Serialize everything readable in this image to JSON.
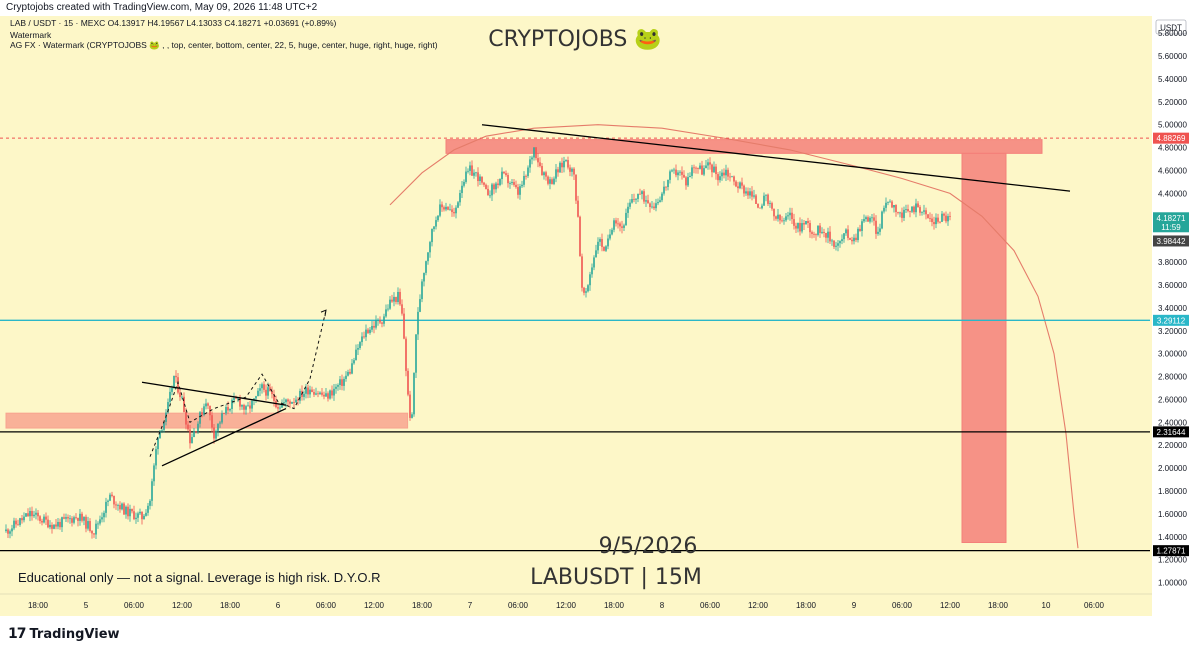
{
  "header": {
    "created_by": "Cryptojobs created with TradingView.com, May 09, 2026 11:48 UTC+2"
  },
  "brand": {
    "logo_mark": "17",
    "logo_text": "TradingView"
  },
  "colors": {
    "background": "#fdf7c8",
    "up": "#26a69a",
    "down": "#ef5350",
    "wick": "#444444",
    "zone": "#f8a48f",
    "red_zone": "#f4807a",
    "cyan": "#2ab7c8",
    "black": "#000000",
    "curve": "#e57c6a"
  },
  "chart_data": {
    "type": "candlestick",
    "symbol": "LAB / USDT · 15 · MEXC",
    "ohlc": {
      "open": "O4.13917",
      "high": "H4.19567",
      "low": "L4.13033",
      "close": "C4.18271",
      "change": "+0.03691 (+0.89%)"
    },
    "indicator_lines": [
      "Watermark",
      "AG FX · Watermark (CRYPTOJOBS 🐸 , , top, center, bottom, center, 22, 5, huge, center, huge, right, huge, right)"
    ],
    "watermark": "CRYPTOJOBS 🐸",
    "date_text": "9/5/2026",
    "pair_text": "LABUSDT | 15M",
    "disclaimer": "Educational only — not a signal. Leverage is high risk. D.Y.O.R",
    "y_axis": {
      "currency": "USDT",
      "min": 0.9,
      "max": 5.95,
      "ticks": [
        "5.80000",
        "5.60000",
        "5.40000",
        "5.20000",
        "5.00000",
        "4.80000",
        "4.60000",
        "4.40000",
        "4.20000",
        "4.00000",
        "3.80000",
        "3.60000",
        "3.40000",
        "3.20000",
        "3.00000",
        "2.80000",
        "2.60000",
        "2.40000",
        "2.20000",
        "2.00000",
        "1.80000",
        "1.60000",
        "1.40000",
        "1.20000",
        "1.00000"
      ]
    },
    "x_axis": {
      "start": "May 4 14:00",
      "end": "May 10 08:00",
      "ticks": [
        {
          "label": "18:00",
          "t": 4
        },
        {
          "label": "5",
          "t": 10
        },
        {
          "label": "06:00",
          "t": 16
        },
        {
          "label": "12:00",
          "t": 22
        },
        {
          "label": "18:00",
          "t": 28
        },
        {
          "label": "6",
          "t": 34
        },
        {
          "label": "06:00",
          "t": 40
        },
        {
          "label": "12:00",
          "t": 46
        },
        {
          "label": "18:00",
          "t": 52
        },
        {
          "label": "7",
          "t": 58
        },
        {
          "label": "06:00",
          "t": 64
        },
        {
          "label": "12:00",
          "t": 70
        },
        {
          "label": "18:00",
          "t": 76
        },
        {
          "label": "8",
          "t": 82
        },
        {
          "label": "06:00",
          "t": 88
        },
        {
          "label": "12:00",
          "t": 94
        },
        {
          "label": "18:00",
          "t": 100
        },
        {
          "label": "9",
          "t": 106
        },
        {
          "label": "06:00",
          "t": 112
        },
        {
          "label": "12:00",
          "t": 118
        },
        {
          "label": "18:00",
          "t": 124
        },
        {
          "label": "10",
          "t": 130
        },
        {
          "label": "06:00",
          "t": 136
        }
      ]
    },
    "price_path": [
      [
        0,
        1.45
      ],
      [
        3,
        1.6
      ],
      [
        6,
        1.5
      ],
      [
        9,
        1.58
      ],
      [
        11,
        1.45
      ],
      [
        13,
        1.75
      ],
      [
        15,
        1.62
      ],
      [
        17,
        1.57
      ],
      [
        18,
        1.72
      ],
      [
        19,
        2.3
      ],
      [
        20,
        2.45
      ],
      [
        21,
        2.8
      ],
      [
        22,
        2.6
      ],
      [
        23,
        2.25
      ],
      [
        24,
        2.4
      ],
      [
        25,
        2.6
      ],
      [
        26,
        2.3
      ],
      [
        27,
        2.45
      ],
      [
        28,
        2.55
      ],
      [
        29,
        2.6
      ],
      [
        30,
        2.5
      ],
      [
        31,
        2.58
      ],
      [
        32,
        2.7
      ],
      [
        33,
        2.65
      ],
      [
        34,
        2.55
      ],
      [
        36,
        2.6
      ],
      [
        38,
        2.7
      ],
      [
        40,
        2.62
      ],
      [
        42,
        2.75
      ],
      [
        43,
        2.85
      ],
      [
        44,
        3.05
      ],
      [
        45,
        3.2
      ],
      [
        46,
        3.25
      ],
      [
        47,
        3.3
      ],
      [
        48,
        3.45
      ],
      [
        49,
        3.5
      ],
      [
        49.6,
        3.3
      ],
      [
        50.2,
        2.65
      ],
      [
        50.7,
        2.35
      ],
      [
        51.2,
        3.15
      ],
      [
        52,
        3.65
      ],
      [
        53,
        4.0
      ],
      [
        54,
        4.25
      ],
      [
        55,
        4.3
      ],
      [
        56,
        4.2
      ],
      [
        57,
        4.5
      ],
      [
        58,
        4.6
      ],
      [
        59,
        4.55
      ],
      [
        60,
        4.4
      ],
      [
        61,
        4.45
      ],
      [
        62,
        4.55
      ],
      [
        63,
        4.5
      ],
      [
        64,
        4.4
      ],
      [
        65,
        4.55
      ],
      [
        66,
        4.8
      ],
      [
        67,
        4.6
      ],
      [
        68,
        4.5
      ],
      [
        69,
        4.6
      ],
      [
        70,
        4.7
      ],
      [
        71,
        4.55
      ],
      [
        71.5,
        4.2
      ],
      [
        72,
        3.55
      ],
      [
        72.5,
        3.5
      ],
      [
        73,
        3.7
      ],
      [
        74,
        4.0
      ],
      [
        75,
        3.9
      ],
      [
        76,
        4.2
      ],
      [
        77,
        4.1
      ],
      [
        78,
        4.3
      ],
      [
        79,
        4.4
      ],
      [
        80,
        4.35
      ],
      [
        81,
        4.3
      ],
      [
        82,
        4.4
      ],
      [
        83,
        4.55
      ],
      [
        84,
        4.6
      ],
      [
        85,
        4.5
      ],
      [
        86,
        4.65
      ],
      [
        87,
        4.6
      ],
      [
        88,
        4.65
      ],
      [
        89,
        4.55
      ],
      [
        90,
        4.6
      ],
      [
        91,
        4.5
      ],
      [
        92,
        4.45
      ],
      [
        93,
        4.4
      ],
      [
        94,
        4.3
      ],
      [
        95,
        4.35
      ],
      [
        96,
        4.2
      ],
      [
        97,
        4.15
      ],
      [
        98,
        4.2
      ],
      [
        99,
        4.1
      ],
      [
        100,
        4.15
      ],
      [
        101,
        4.05
      ],
      [
        102,
        4.1
      ],
      [
        103,
        4.0
      ],
      [
        104,
        3.95
      ],
      [
        105,
        4.05
      ],
      [
        106,
        4.0
      ],
      [
        107,
        4.15
      ],
      [
        108,
        4.2
      ],
      [
        109,
        4.05
      ],
      [
        110,
        4.35
      ],
      [
        111,
        4.3
      ],
      [
        112,
        4.2
      ],
      [
        113,
        4.25
      ],
      [
        114,
        4.3
      ],
      [
        115,
        4.2
      ],
      [
        116,
        4.15
      ],
      [
        117,
        4.2
      ],
      [
        118,
        4.18
      ]
    ],
    "levels": [
      {
        "price": 4.88269,
        "label": "4.88269",
        "color": "#ef5350",
        "style": "dotted"
      },
      {
        "price": 4.18271,
        "label": "4.18271",
        "sublabel": "11:59",
        "color": "#26a69a",
        "style": "none"
      },
      {
        "price": 3.98442,
        "label": "3.98442",
        "color": "#444444",
        "style": "none"
      },
      {
        "price": 3.29112,
        "label": "3.29112",
        "color": "#2ab7c8",
        "style": "solid"
      },
      {
        "price": 2.31644,
        "label": "2.31644",
        "color": "#000000",
        "style": "solid"
      },
      {
        "price": 1.27871,
        "label": "1.27871",
        "color": "#000000",
        "style": "solid"
      }
    ],
    "zones": [
      {
        "t0": 0,
        "t1": 50.2,
        "p0": 2.35,
        "p1": 2.48,
        "color": "#f8a48f"
      },
      {
        "t0": 55,
        "t1": 129.5,
        "p0": 4.75,
        "p1": 4.87,
        "color": "#f4807a"
      },
      {
        "t0": 119.5,
        "t1": 125,
        "p0": 1.35,
        "p1": 4.75,
        "color": "#f4807a"
      }
    ],
    "trendlines": [
      {
        "t0": 59.5,
        "p0": 5.0,
        "t1": 133,
        "p1": 4.42,
        "color": "#000000"
      },
      {
        "t0": 17,
        "p0": 2.75,
        "t1": 35,
        "p1": 2.55,
        "color": "#000000"
      },
      {
        "t0": 19.5,
        "p0": 2.02,
        "t1": 35,
        "p1": 2.52,
        "color": "#000000"
      }
    ],
    "projection_path": [
      [
        18,
        2.1
      ],
      [
        20,
        2.45
      ],
      [
        21.5,
        2.75
      ],
      [
        23,
        2.4
      ],
      [
        26,
        2.52
      ],
      [
        30,
        2.62
      ],
      [
        32,
        2.82
      ],
      [
        34,
        2.58
      ],
      [
        36,
        2.52
      ],
      [
        38,
        2.78
      ],
      [
        40,
        3.38
      ]
    ],
    "curve_path": [
      [
        48,
        4.3
      ],
      [
        52,
        4.58
      ],
      [
        56,
        4.78
      ],
      [
        60,
        4.9
      ],
      [
        66,
        4.97
      ],
      [
        74,
        5.0
      ],
      [
        82,
        4.97
      ],
      [
        90,
        4.88
      ],
      [
        98,
        4.78
      ],
      [
        106,
        4.64
      ],
      [
        112,
        4.53
      ],
      [
        118,
        4.4
      ],
      [
        122,
        4.2
      ],
      [
        126,
        3.9
      ],
      [
        129,
        3.5
      ],
      [
        131,
        3.0
      ],
      [
        132.5,
        2.3
      ],
      [
        133.5,
        1.6
      ],
      [
        134,
        1.3
      ]
    ]
  }
}
